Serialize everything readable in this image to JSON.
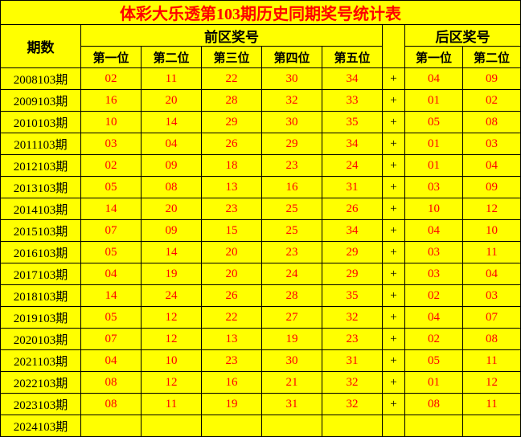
{
  "title": "体彩大乐透第103期历史同期奖号统计表",
  "headers": {
    "period": "期数",
    "front": "前区奖号",
    "back": "后区奖号",
    "pos1": "第一位",
    "pos2": "第二位",
    "pos3": "第三位",
    "pos4": "第四位",
    "pos5": "第五位",
    "bpos1": "第一位",
    "bpos2": "第二位"
  },
  "plus": "+",
  "colors": {
    "bg": "#ffff00",
    "title_text": "#ff0000",
    "num_text": "#ff0000",
    "border": "#000000"
  },
  "rows": [
    {
      "period": "2008103期",
      "f": [
        "02",
        "11",
        "22",
        "30",
        "34"
      ],
      "b": [
        "04",
        "09"
      ]
    },
    {
      "period": "2009103期",
      "f": [
        "16",
        "20",
        "28",
        "32",
        "33"
      ],
      "b": [
        "01",
        "02"
      ]
    },
    {
      "period": "2010103期",
      "f": [
        "10",
        "14",
        "29",
        "30",
        "35"
      ],
      "b": [
        "05",
        "08"
      ]
    },
    {
      "period": "2011103期",
      "f": [
        "03",
        "04",
        "26",
        "29",
        "34"
      ],
      "b": [
        "01",
        "03"
      ]
    },
    {
      "period": "2012103期",
      "f": [
        "02",
        "09",
        "18",
        "23",
        "24"
      ],
      "b": [
        "01",
        "04"
      ]
    },
    {
      "period": "2013103期",
      "f": [
        "05",
        "08",
        "13",
        "16",
        "31"
      ],
      "b": [
        "03",
        "09"
      ]
    },
    {
      "period": "2014103期",
      "f": [
        "14",
        "20",
        "23",
        "25",
        "26"
      ],
      "b": [
        "10",
        "12"
      ]
    },
    {
      "period": "2015103期",
      "f": [
        "07",
        "09",
        "15",
        "25",
        "34"
      ],
      "b": [
        "04",
        "10"
      ]
    },
    {
      "period": "2016103期",
      "f": [
        "05",
        "14",
        "20",
        "23",
        "29"
      ],
      "b": [
        "03",
        "11"
      ]
    },
    {
      "period": "2017103期",
      "f": [
        "04",
        "19",
        "20",
        "24",
        "29"
      ],
      "b": [
        "03",
        "04"
      ]
    },
    {
      "period": "2018103期",
      "f": [
        "14",
        "24",
        "26",
        "28",
        "35"
      ],
      "b": [
        "02",
        "03"
      ]
    },
    {
      "period": "2019103期",
      "f": [
        "05",
        "12",
        "22",
        "27",
        "32"
      ],
      "b": [
        "04",
        "07"
      ]
    },
    {
      "period": "2020103期",
      "f": [
        "07",
        "12",
        "13",
        "19",
        "23"
      ],
      "b": [
        "02",
        "08"
      ]
    },
    {
      "period": "2021103期",
      "f": [
        "04",
        "10",
        "23",
        "30",
        "31"
      ],
      "b": [
        "05",
        "11"
      ]
    },
    {
      "period": "2022103期",
      "f": [
        "08",
        "12",
        "16",
        "21",
        "32"
      ],
      "b": [
        "01",
        "12"
      ]
    },
    {
      "period": "2023103期",
      "f": [
        "08",
        "11",
        "19",
        "31",
        "32"
      ],
      "b": [
        "08",
        "11"
      ]
    },
    {
      "period": "2024103期",
      "f": [
        "",
        "",
        "",
        "",
        ""
      ],
      "b": [
        "",
        ""
      ]
    }
  ],
  "col_widths": {
    "period": 100,
    "front": 75,
    "plus": 28,
    "back": 72
  }
}
